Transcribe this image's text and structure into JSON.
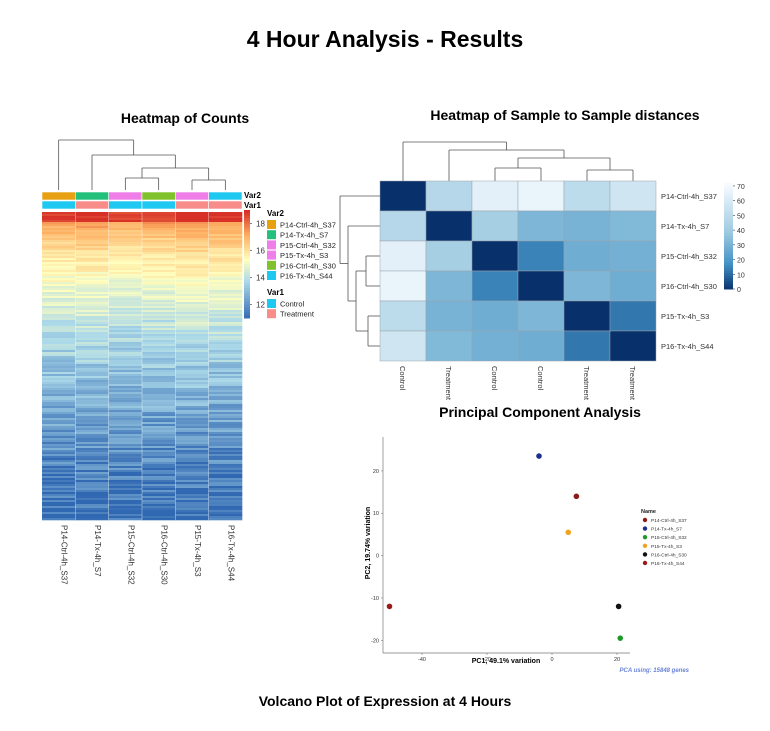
{
  "page": {
    "title": "4 Hour Analysis - Results",
    "bottom_title": "Volcano Plot of Expression at 4 Hours"
  },
  "colors": {
    "control": "#1ec8f0",
    "treatment": "#f78c88",
    "distance_dark": "#08306b",
    "sample_colors": [
      "#e8a013",
      "#22c07a",
      "#f07ee8",
      "#7fc22b",
      "#f07ee8",
      "#1ec8f0"
    ]
  },
  "chart_data": [
    {
      "type": "heatmap",
      "title": "Heatmap of Counts",
      "columns": [
        "P14-Ctrl-4h_S37",
        "P14-Tx-4h_S7",
        "P15-Ctrl-4h_S32",
        "P16-Ctrl-4h_S30",
        "P15-Tx-4h_S3",
        "P16-Tx-4h_S44"
      ],
      "annotations": {
        "Var2": [
          "P14-Ctrl-4h_S37",
          "P14-Tx-4h_S7",
          "P15-Ctrl-4h_S32",
          "P15-Tx-4h_S3",
          "P16-Ctrl-4h_S30",
          "P16-Tx-4h_S44"
        ],
        "Var1": [
          "Control",
          "Treatment"
        ],
        "column_var1": [
          "Control",
          "Treatment",
          "Control",
          "Control",
          "Treatment",
          "Treatment"
        ]
      },
      "color_scale": {
        "ticks": [
          12,
          14,
          16,
          18
        ],
        "range": [
          11,
          19
        ]
      },
      "legend_titles": [
        "Var2",
        "Var1"
      ]
    },
    {
      "type": "heatmap",
      "title": "Heatmap of Sample to Sample distances",
      "rows": [
        "P14-Ctrl-4h_S37",
        "P14-Tx-4h_S7",
        "P15-Ctrl-4h_S32",
        "P16-Ctrl-4h_S30",
        "P15-Tx-4h_S3",
        "P16-Tx-4h_S44"
      ],
      "columns": [
        "Control",
        "Treatment",
        "Control",
        "Control",
        "Treatment",
        "Treatment"
      ],
      "values": [
        [
          0,
          20,
          5,
          3,
          18,
          12
        ],
        [
          20,
          0,
          25,
          35,
          36,
          34
        ],
        [
          5,
          25,
          0,
          50,
          38,
          37
        ],
        [
          3,
          35,
          50,
          0,
          35,
          38
        ],
        [
          18,
          36,
          38,
          35,
          0,
          52
        ],
        [
          12,
          34,
          37,
          38,
          52,
          0
        ]
      ],
      "color_scale": {
        "ticks": [
          0,
          10,
          20,
          30,
          40,
          50,
          60,
          70
        ],
        "range": [
          0,
          72
        ]
      }
    },
    {
      "type": "scatter",
      "title": "Principal Component Analysis",
      "xlabel": "PC1, 49.1% variation",
      "ylabel": "PC2, 19.74% variation",
      "xlim": [
        -52,
        24
      ],
      "ylim": [
        -23,
        28
      ],
      "xticks": [
        -40,
        -20,
        0,
        20
      ],
      "yticks": [
        -20,
        -10,
        0,
        10,
        20
      ],
      "legend_title": "Name",
      "caption": "PCA using: 15848 genes",
      "series": [
        {
          "name": "P14-Ctrl-4h_S37",
          "color": "#8b1a1a",
          "x": 7.5,
          "y": 14
        },
        {
          "name": "P14-Tx-4h_S7",
          "color": "#1f2d8f",
          "x": -4,
          "y": 23.5
        },
        {
          "name": "P15-Ctrl-4h_S32",
          "color": "#1f9a2a",
          "x": 21,
          "y": -19.5
        },
        {
          "name": "P15-Tx-4h_S3",
          "color": "#f2a21e",
          "x": 5,
          "y": 5.5
        },
        {
          "name": "P16-Ctrl-4h_S30",
          "color": "#111111",
          "x": 20.5,
          "y": -12
        },
        {
          "name": "P16-Tx-4h_S44",
          "color": "#9b1a1a",
          "x": -50,
          "y": -12
        }
      ]
    }
  ]
}
